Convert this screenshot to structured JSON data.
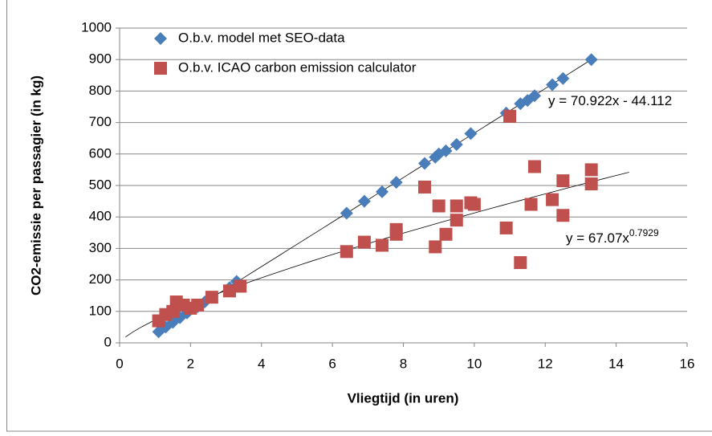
{
  "chart_data": {
    "type": "scatter",
    "xlabel": "Vliegtijd (in uren)",
    "ylabel": "CO2-emissie per passagier (in kg)",
    "xlim": [
      0,
      16
    ],
    "xticks": [
      0,
      2,
      4,
      6,
      8,
      10,
      12,
      14,
      16
    ],
    "ylim": [
      0,
      1000
    ],
    "yticks": [
      0,
      100,
      200,
      300,
      400,
      500,
      600,
      700,
      800,
      900,
      1000
    ],
    "grid": true,
    "legend": "top-left",
    "series": [
      {
        "name": "O.b.v. model met SEO-data",
        "color": "#4a7ebb",
        "marker": "diamond",
        "trendline": "linear",
        "x": [
          1.1,
          1.3,
          1.5,
          1.7,
          1.9,
          2.2,
          2.4,
          3.1,
          3.3,
          6.4,
          6.9,
          7.4,
          7.8,
          8.6,
          8.9,
          9.0,
          9.2,
          9.5,
          9.9,
          10.9,
          11.3,
          11.5,
          11.7,
          12.2,
          12.5,
          13.3
        ],
        "y": [
          35,
          50,
          65,
          80,
          95,
          115,
          130,
          175,
          195,
          412,
          450,
          480,
          510,
          570,
          590,
          600,
          610,
          630,
          665,
          730,
          760,
          770,
          785,
          820,
          840,
          900
        ]
      },
      {
        "name": "O.b.v. ICAO carbon emission calculator",
        "color": "#c0504d",
        "marker": "square",
        "trendline": "power",
        "x": [
          1.1,
          1.3,
          1.5,
          1.6,
          1.8,
          2.0,
          2.2,
          2.6,
          3.1,
          3.4,
          6.4,
          6.9,
          7.4,
          7.8,
          7.8,
          8.6,
          8.9,
          9.0,
          9.2,
          9.5,
          9.5,
          9.9,
          10.0,
          10.9,
          11.0,
          11.3,
          11.6,
          11.7,
          12.2,
          12.5,
          12.5,
          13.3,
          13.3
        ],
        "y": [
          70,
          90,
          100,
          130,
          120,
          110,
          120,
          145,
          165,
          180,
          290,
          320,
          310,
          345,
          360,
          495,
          305,
          435,
          345,
          390,
          435,
          445,
          440,
          365,
          720,
          255,
          440,
          560,
          455,
          405,
          515,
          505,
          550
        ]
      }
    ],
    "annotations": [
      {
        "text": "y = 70.922x - 44.112"
      },
      {
        "text": "y = 67.07x",
        "sup": "0.7929"
      }
    ]
  }
}
